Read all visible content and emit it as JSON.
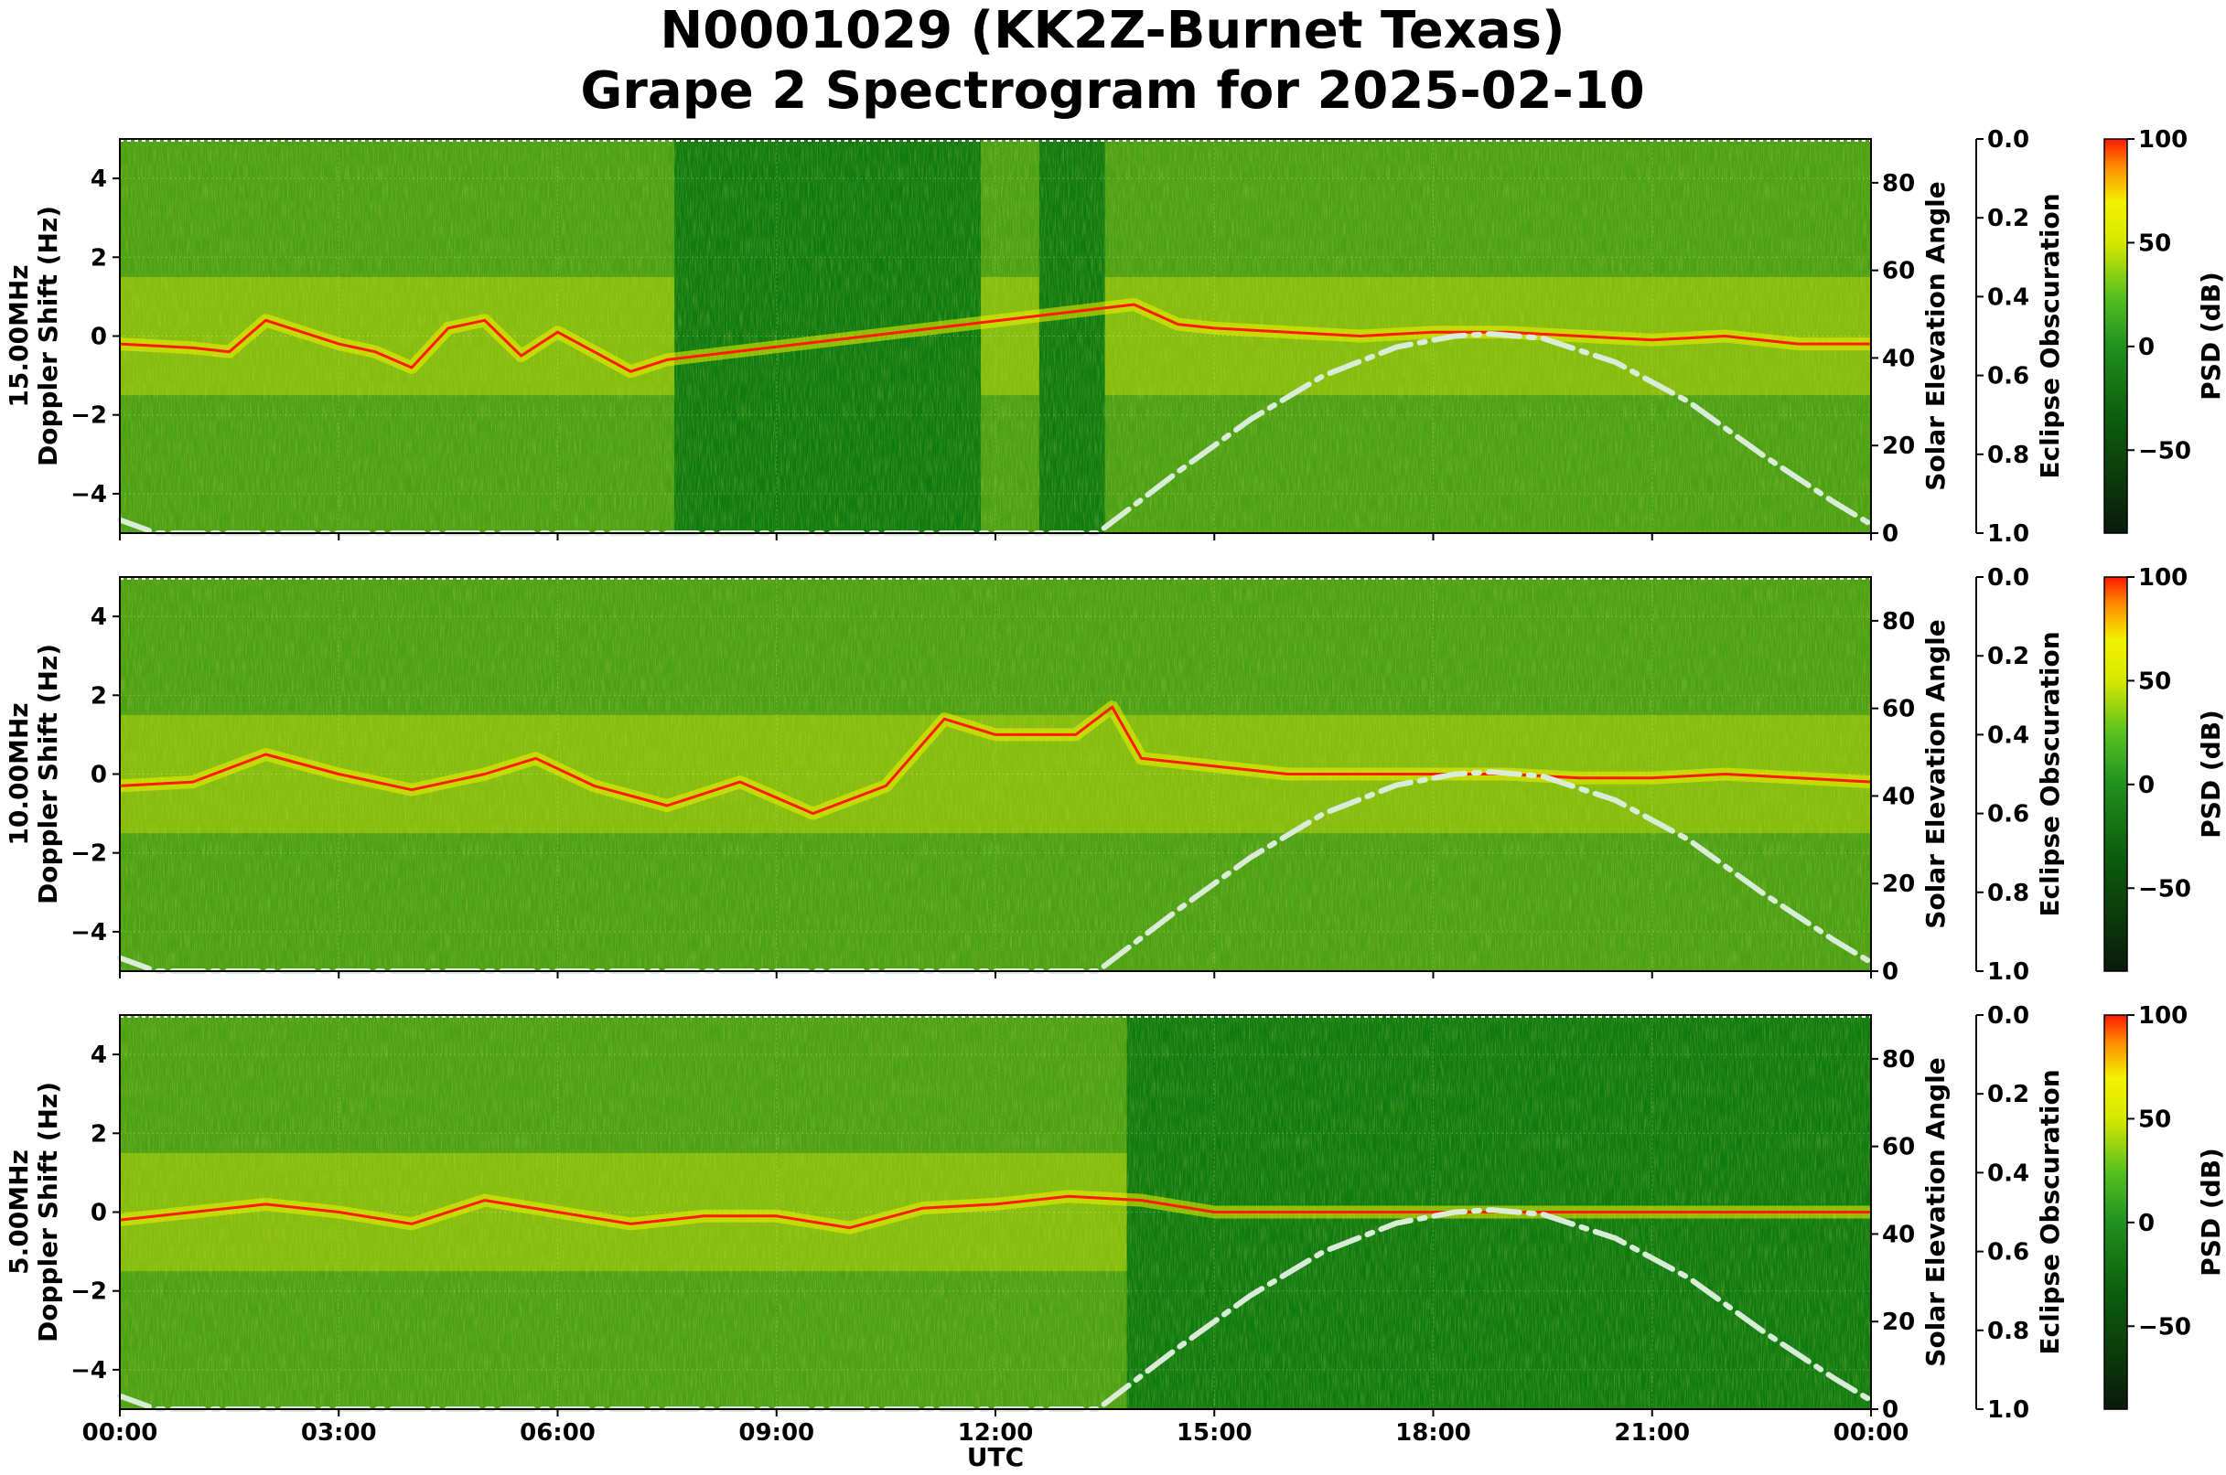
{
  "title": {
    "line1": "N0001029 (KK2Z-Burnet Texas)",
    "line2": "Grape 2 Spectrogram for 2025-02-10"
  },
  "colors": {
    "background_green": "#0f7a0f",
    "low_psd": "#0a1a0a",
    "mid_psd": "#1f8f1f",
    "high_yellow": "#f2f200",
    "peak_red": "#ff1a00",
    "elevation_curve": "#d8ecd8"
  },
  "chart_data": {
    "type": "heatmap",
    "xlabel": "UTC",
    "x_ticks": [
      "00:00",
      "03:00",
      "06:00",
      "09:00",
      "12:00",
      "15:00",
      "18:00",
      "21:00",
      "00:00"
    ],
    "xlim_hours": [
      0,
      24
    ],
    "ylabel_suffix": "Doppler Shift (Hz)",
    "ylim": [
      -5,
      5
    ],
    "y_ticks": [
      "4",
      "2",
      "0",
      "−2",
      "−4"
    ],
    "right_axis": {
      "label": "Solar Elevation Angle",
      "ylim": [
        0,
        90
      ],
      "ticks": [
        "80",
        "60",
        "40",
        "20",
        "0"
      ]
    },
    "eclipse_axis": {
      "label": "Eclipse Obscuration",
      "ylim": [
        1.0,
        0.0
      ],
      "ticks": [
        "0.0",
        "0.2",
        "0.4",
        "0.6",
        "0.8",
        "1.0"
      ]
    },
    "colorbar": {
      "label": "PSD (dB)",
      "range": [
        -90,
        100
      ],
      "ticks": [
        "100",
        "50",
        "0",
        "−50"
      ]
    },
    "elevation_curve": {
      "style": "dash-dot",
      "x_hours": [
        0,
        0.5,
        13.4,
        14.5,
        15.5,
        16.5,
        17.5,
        18.3,
        18.8,
        19.5,
        20.5,
        21.5,
        22.5,
        23.5,
        24
      ],
      "y_degrees": [
        3,
        0,
        0,
        14,
        26,
        36,
        42.5,
        45,
        45.5,
        44.5,
        39,
        30,
        18,
        7,
        2
      ]
    },
    "panels": [
      {
        "frequency": "15.00MHz",
        "ylabel": "15.00MHz\nDoppler Shift (Hz)",
        "carrier_trace": {
          "x_hours": [
            0,
            1,
            1.5,
            2,
            2.5,
            3,
            3.5,
            4,
            4.5,
            5,
            5.5,
            6,
            6.5,
            7,
            7.5,
            13.9,
            14.5,
            15,
            16,
            17,
            18,
            19,
            20,
            21,
            22,
            23,
            24
          ],
          "doppler_hz": [
            -0.2,
            -0.3,
            -0.4,
            0.4,
            0.1,
            -0.2,
            -0.4,
            -0.8,
            0.2,
            0.4,
            -0.5,
            0.1,
            -0.4,
            -0.9,
            -0.6,
            0.8,
            0.3,
            0.2,
            0.1,
            0.0,
            0.1,
            0.1,
            0.0,
            -0.1,
            0.0,
            -0.2,
            -0.2
          ]
        },
        "yellow_regions_hours": [
          [
            0,
            7.6
          ],
          [
            11.8,
            12.6
          ],
          [
            13.5,
            24
          ]
        ]
      },
      {
        "frequency": "10.00MHz",
        "ylabel": "10.00MHz\nDoppler Shift (Hz)",
        "carrier_trace": {
          "x_hours": [
            0,
            1,
            2,
            3,
            4,
            5,
            5.7,
            6.5,
            7.5,
            8.5,
            9.5,
            10.5,
            11.3,
            12,
            13.1,
            13.6,
            14,
            15,
            16,
            17,
            18,
            19,
            20,
            21,
            22,
            23,
            24
          ],
          "doppler_hz": [
            -0.3,
            -0.2,
            0.5,
            0.0,
            -0.4,
            0.0,
            0.4,
            -0.3,
            -0.8,
            -0.2,
            -1.0,
            -0.3,
            1.4,
            1.0,
            1.0,
            1.7,
            0.4,
            0.2,
            0.0,
            0.0,
            0.0,
            0.0,
            -0.1,
            -0.1,
            0.0,
            -0.1,
            -0.2
          ]
        },
        "yellow_regions_hours": [
          [
            0,
            24
          ]
        ]
      },
      {
        "frequency": "5.00MHz",
        "ylabel": "5.00MHz\nDoppler Shift (Hz)",
        "carrier_trace": {
          "x_hours": [
            0,
            1,
            2,
            3,
            4,
            5,
            6,
            7,
            8,
            9,
            10,
            11,
            12,
            13,
            14,
            15,
            18,
            21,
            24
          ],
          "doppler_hz": [
            -0.2,
            0.0,
            0.2,
            0.0,
            -0.3,
            0.3,
            0.0,
            -0.3,
            -0.1,
            -0.1,
            -0.4,
            0.1,
            0.2,
            0.4,
            0.3,
            0.0,
            0.0,
            0.0,
            0.0
          ]
        },
        "yellow_regions_hours": [
          [
            0,
            13.8
          ]
        ]
      }
    ]
  }
}
